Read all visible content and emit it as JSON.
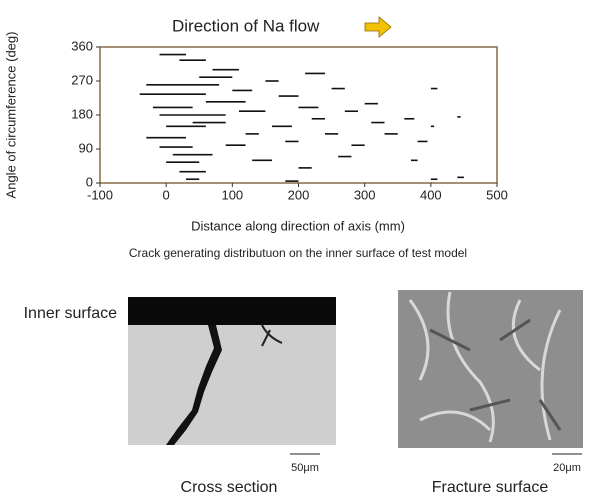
{
  "chart_data": {
    "type": "segments",
    "title": "Direction of Na flow",
    "x_label": "Distance along direction of axis (mm)",
    "y_label": "Angle of circumference (deg)",
    "caption": "Crack generating distributuon on the inner surface of test model",
    "color": "#111111",
    "xlim": [
      -100,
      500
    ],
    "xticks": [
      -100,
      0,
      100,
      200,
      300,
      400,
      500
    ],
    "ylim": [
      0,
      360
    ],
    "yticks": [
      0,
      90,
      180,
      270,
      360
    ],
    "x_start": [
      -40,
      -30,
      -20,
      -10,
      0,
      -30,
      -10,
      10,
      0,
      20,
      30,
      40,
      60,
      50,
      70,
      20,
      -10,
      100,
      110,
      120,
      90,
      130,
      150,
      170,
      160,
      180,
      200,
      210,
      220,
      240,
      250,
      200,
      180,
      270,
      280,
      300,
      310,
      260,
      330,
      360,
      370,
      380,
      400,
      440,
      400,
      440,
      400
    ],
    "x_end": [
      60,
      80,
      40,
      90,
      60,
      30,
      40,
      70,
      50,
      60,
      50,
      90,
      120,
      100,
      110,
      60,
      30,
      130,
      150,
      140,
      120,
      160,
      170,
      200,
      190,
      200,
      230,
      240,
      240,
      260,
      270,
      220,
      200,
      290,
      300,
      320,
      330,
      280,
      350,
      375,
      380,
      395,
      410,
      450,
      405,
      445,
      410
    ],
    "y": [
      235,
      260,
      200,
      180,
      150,
      120,
      95,
      75,
      55,
      30,
      10,
      160,
      215,
      280,
      300,
      325,
      340,
      245,
      190,
      130,
      100,
      60,
      270,
      230,
      150,
      110,
      200,
      290,
      170,
      130,
      250,
      40,
      5,
      190,
      100,
      210,
      160,
      70,
      130,
      170,
      60,
      110,
      10,
      15,
      150,
      175,
      250
    ]
  },
  "figures": [
    {
      "label": "Inner surface",
      "scale_bar": "50μm",
      "caption": "Cross section"
    },
    {
      "scale_bar": "20μm",
      "caption": "Fracture surface"
    }
  ]
}
